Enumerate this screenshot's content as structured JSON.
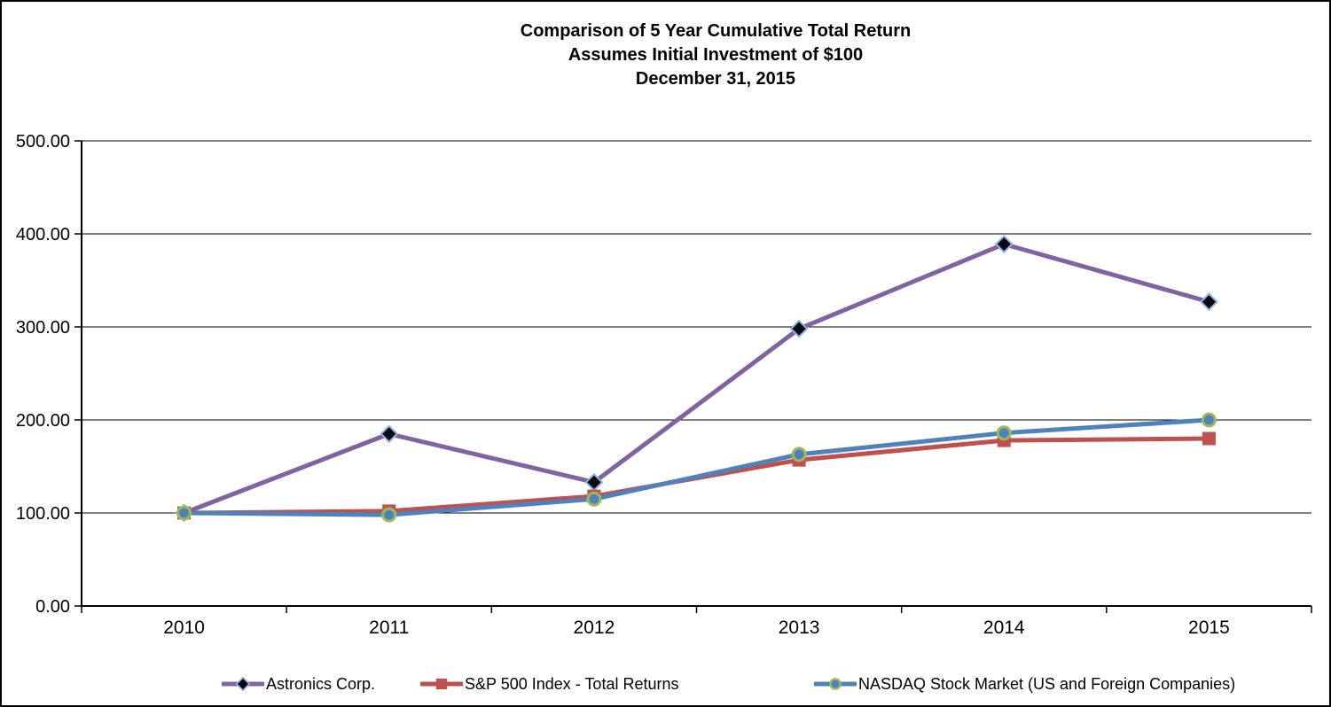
{
  "chart_data": {
    "type": "line",
    "title_lines": [
      "Comparison of 5 Year Cumulative Total Return",
      "Assumes Initial Investment of $100",
      "December 31, 2015"
    ],
    "categories": [
      "2010",
      "2011",
      "2012",
      "2013",
      "2014",
      "2015"
    ],
    "y_ticks": [
      "0.00",
      "100.00",
      "200.00",
      "300.00",
      "400.00",
      "500.00"
    ],
    "y_tick_values": [
      0,
      100,
      200,
      300,
      400,
      500
    ],
    "ylim": [
      0,
      500
    ],
    "grid": true,
    "legend_position": "bottom",
    "background_color": "#ffffff",
    "axis_color": "#000000",
    "series": [
      {
        "name": "Astronics Corp.",
        "values": [
          100.0,
          185.0,
          133.0,
          298.0,
          389.0,
          327.0
        ],
        "line_color": "#8064A2",
        "marker": "diamond",
        "marker_fill": "#0b0b14",
        "marker_stroke": "#8DB4E2"
      },
      {
        "name": "S&P 500 Index - Total Returns",
        "values": [
          100.0,
          102.0,
          118.0,
          157.0,
          178.0,
          180.0
        ],
        "line_color": "#C0504D",
        "marker": "square",
        "marker_fill": "#C0504D",
        "marker_stroke": "#C0504D"
      },
      {
        "name": "NASDAQ Stock Market (US and Foreign Companies)",
        "values": [
          100.0,
          98.0,
          115.0,
          163.0,
          186.0,
          200.0
        ],
        "line_color": "#4F81BD",
        "marker": "circle",
        "marker_fill": "#4F81BD",
        "marker_stroke": "#9BBB59"
      }
    ]
  }
}
